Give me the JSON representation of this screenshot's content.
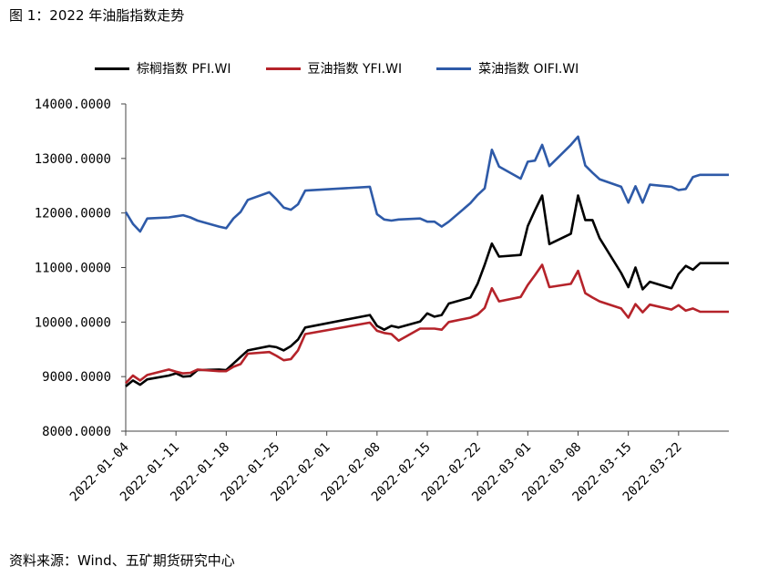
{
  "title": "图 1：2022 年油脂指数走势",
  "source": "资料来源：Wind、五矿期货研究中心",
  "chart_data": {
    "type": "line",
    "ylim": [
      8000,
      14000
    ],
    "yticks": [
      "14000.0000",
      "13000.0000",
      "12000.0000",
      "11000.0000",
      "10000.0000",
      "9000.0000",
      "8000.0000"
    ],
    "ytick_values": [
      14000,
      13000,
      12000,
      11000,
      10000,
      9000,
      8000
    ],
    "x_start": "2022-01-04",
    "x_end": "2022-03-29",
    "xticks": [
      "2022-01-04",
      "2022-01-11",
      "2022-01-18",
      "2022-01-25",
      "2022-02-01",
      "2022-02-08",
      "2022-02-15",
      "2022-02-22",
      "2022-03-01",
      "2022-03-08",
      "2022-03-15",
      "2022-03-22"
    ],
    "grid": false,
    "legend": "top",
    "series": [
      {
        "name": "棕榈指数 PFI.WI",
        "color": "#000000",
        "points": [
          [
            "2022-01-04",
            8820
          ],
          [
            "2022-01-05",
            8930
          ],
          [
            "2022-01-06",
            8850
          ],
          [
            "2022-01-07",
            8950
          ],
          [
            "2022-01-10",
            9020
          ],
          [
            "2022-01-11",
            9060
          ],
          [
            "2022-01-12",
            9000
          ],
          [
            "2022-01-13",
            9010
          ],
          [
            "2022-01-14",
            9120
          ],
          [
            "2022-01-17",
            9130
          ],
          [
            "2022-01-18",
            9120
          ],
          [
            "2022-01-19",
            9240
          ],
          [
            "2022-01-20",
            9360
          ],
          [
            "2022-01-21",
            9480
          ],
          [
            "2022-01-24",
            9560
          ],
          [
            "2022-01-25",
            9540
          ],
          [
            "2022-01-26",
            9480
          ],
          [
            "2022-01-27",
            9560
          ],
          [
            "2022-01-28",
            9680
          ],
          [
            "2022-01-29",
            9900
          ],
          [
            "2022-02-07",
            10130
          ],
          [
            "2022-02-08",
            9930
          ],
          [
            "2022-02-09",
            9860
          ],
          [
            "2022-02-10",
            9930
          ],
          [
            "2022-02-11",
            9900
          ],
          [
            "2022-02-14",
            10010
          ],
          [
            "2022-02-15",
            10160
          ],
          [
            "2022-02-16",
            10100
          ],
          [
            "2022-02-17",
            10130
          ],
          [
            "2022-02-18",
            10340
          ],
          [
            "2022-02-21",
            10450
          ],
          [
            "2022-02-22",
            10700
          ],
          [
            "2022-02-23",
            11050
          ],
          [
            "2022-02-24",
            11440
          ],
          [
            "2022-02-25",
            11200
          ],
          [
            "2022-02-28",
            11230
          ],
          [
            "2022-03-01",
            11760
          ],
          [
            "2022-03-02",
            12050
          ],
          [
            "2022-03-03",
            12320
          ],
          [
            "2022-03-04",
            11430
          ],
          [
            "2022-03-07",
            11620
          ],
          [
            "2022-03-08",
            12320
          ],
          [
            "2022-03-09",
            11870
          ],
          [
            "2022-03-10",
            11870
          ],
          [
            "2022-03-11",
            11540
          ],
          [
            "2022-03-14",
            10900
          ],
          [
            "2022-03-15",
            10640
          ],
          [
            "2022-03-16",
            11000
          ],
          [
            "2022-03-17",
            10600
          ],
          [
            "2022-03-18",
            10740
          ],
          [
            "2022-03-21",
            10620
          ],
          [
            "2022-03-22",
            10880
          ],
          [
            "2022-03-23",
            11030
          ],
          [
            "2022-03-24",
            10960
          ],
          [
            "2022-03-25",
            11080
          ],
          [
            "2022-03-28",
            11080
          ],
          [
            "2022-03-29",
            11080
          ]
        ]
      },
      {
        "name": "豆油指数 YFI.WI",
        "color": "#b5232a",
        "points": [
          [
            "2022-01-04",
            8880
          ],
          [
            "2022-01-05",
            9020
          ],
          [
            "2022-01-06",
            8930
          ],
          [
            "2022-01-07",
            9030
          ],
          [
            "2022-01-10",
            9130
          ],
          [
            "2022-01-11",
            9090
          ],
          [
            "2022-01-12",
            9060
          ],
          [
            "2022-01-13",
            9070
          ],
          [
            "2022-01-14",
            9130
          ],
          [
            "2022-01-17",
            9100
          ],
          [
            "2022-01-18",
            9100
          ],
          [
            "2022-01-19",
            9180
          ],
          [
            "2022-01-20",
            9230
          ],
          [
            "2022-01-21",
            9420
          ],
          [
            "2022-01-24",
            9450
          ],
          [
            "2022-01-25",
            9380
          ],
          [
            "2022-01-26",
            9300
          ],
          [
            "2022-01-27",
            9320
          ],
          [
            "2022-01-28",
            9480
          ],
          [
            "2022-01-29",
            9780
          ],
          [
            "2022-02-07",
            9990
          ],
          [
            "2022-02-08",
            9840
          ],
          [
            "2022-02-09",
            9800
          ],
          [
            "2022-02-10",
            9780
          ],
          [
            "2022-02-11",
            9660
          ],
          [
            "2022-02-14",
            9880
          ],
          [
            "2022-02-15",
            9880
          ],
          [
            "2022-02-16",
            9880
          ],
          [
            "2022-02-17",
            9860
          ],
          [
            "2022-02-18",
            10000
          ],
          [
            "2022-02-21",
            10080
          ],
          [
            "2022-02-22",
            10140
          ],
          [
            "2022-02-23",
            10260
          ],
          [
            "2022-02-24",
            10620
          ],
          [
            "2022-02-25",
            10380
          ],
          [
            "2022-02-28",
            10460
          ],
          [
            "2022-03-01",
            10680
          ],
          [
            "2022-03-02",
            10860
          ],
          [
            "2022-03-03",
            11050
          ],
          [
            "2022-03-04",
            10640
          ],
          [
            "2022-03-07",
            10700
          ],
          [
            "2022-03-08",
            10940
          ],
          [
            "2022-03-09",
            10530
          ],
          [
            "2022-03-10",
            10450
          ],
          [
            "2022-03-11",
            10380
          ],
          [
            "2022-03-14",
            10250
          ],
          [
            "2022-03-15",
            10080
          ],
          [
            "2022-03-16",
            10330
          ],
          [
            "2022-03-17",
            10180
          ],
          [
            "2022-03-18",
            10320
          ],
          [
            "2022-03-21",
            10230
          ],
          [
            "2022-03-22",
            10310
          ],
          [
            "2022-03-23",
            10210
          ],
          [
            "2022-03-24",
            10250
          ],
          [
            "2022-03-25",
            10190
          ],
          [
            "2022-03-28",
            10190
          ],
          [
            "2022-03-29",
            10190
          ]
        ]
      },
      {
        "name": "菜油指数 OIFI.WI",
        "color": "#2e5aa8",
        "points": [
          [
            "2022-01-04",
            12020
          ],
          [
            "2022-01-05",
            11800
          ],
          [
            "2022-01-06",
            11660
          ],
          [
            "2022-01-07",
            11900
          ],
          [
            "2022-01-10",
            11920
          ],
          [
            "2022-01-11",
            11940
          ],
          [
            "2022-01-12",
            11960
          ],
          [
            "2022-01-13",
            11920
          ],
          [
            "2022-01-14",
            11860
          ],
          [
            "2022-01-17",
            11750
          ],
          [
            "2022-01-18",
            11720
          ],
          [
            "2022-01-19",
            11900
          ],
          [
            "2022-01-20",
            12020
          ],
          [
            "2022-01-21",
            12240
          ],
          [
            "2022-01-24",
            12380
          ],
          [
            "2022-01-25",
            12250
          ],
          [
            "2022-01-26",
            12100
          ],
          [
            "2022-01-27",
            12060
          ],
          [
            "2022-01-28",
            12160
          ],
          [
            "2022-01-29",
            12410
          ],
          [
            "2022-02-07",
            12480
          ],
          [
            "2022-02-08",
            11980
          ],
          [
            "2022-02-09",
            11880
          ],
          [
            "2022-02-10",
            11860
          ],
          [
            "2022-02-11",
            11880
          ],
          [
            "2022-02-14",
            11900
          ],
          [
            "2022-02-15",
            11840
          ],
          [
            "2022-02-16",
            11840
          ],
          [
            "2022-02-17",
            11750
          ],
          [
            "2022-02-18",
            11840
          ],
          [
            "2022-02-21",
            12180
          ],
          [
            "2022-02-22",
            12330
          ],
          [
            "2022-02-23",
            12450
          ],
          [
            "2022-02-24",
            13160
          ],
          [
            "2022-02-25",
            12850
          ],
          [
            "2022-02-28",
            12630
          ],
          [
            "2022-03-01",
            12940
          ],
          [
            "2022-03-02",
            12960
          ],
          [
            "2022-03-03",
            13250
          ],
          [
            "2022-03-04",
            12860
          ],
          [
            "2022-03-07",
            13250
          ],
          [
            "2022-03-08",
            13400
          ],
          [
            "2022-03-09",
            12870
          ],
          [
            "2022-03-10",
            12740
          ],
          [
            "2022-03-11",
            12620
          ],
          [
            "2022-03-14",
            12480
          ],
          [
            "2022-03-15",
            12190
          ],
          [
            "2022-03-16",
            12490
          ],
          [
            "2022-03-17",
            12190
          ],
          [
            "2022-03-18",
            12520
          ],
          [
            "2022-03-21",
            12480
          ],
          [
            "2022-03-22",
            12420
          ],
          [
            "2022-03-23",
            12440
          ],
          [
            "2022-03-24",
            12660
          ],
          [
            "2022-03-25",
            12700
          ],
          [
            "2022-03-28",
            12700
          ],
          [
            "2022-03-29",
            12700
          ]
        ]
      }
    ]
  }
}
